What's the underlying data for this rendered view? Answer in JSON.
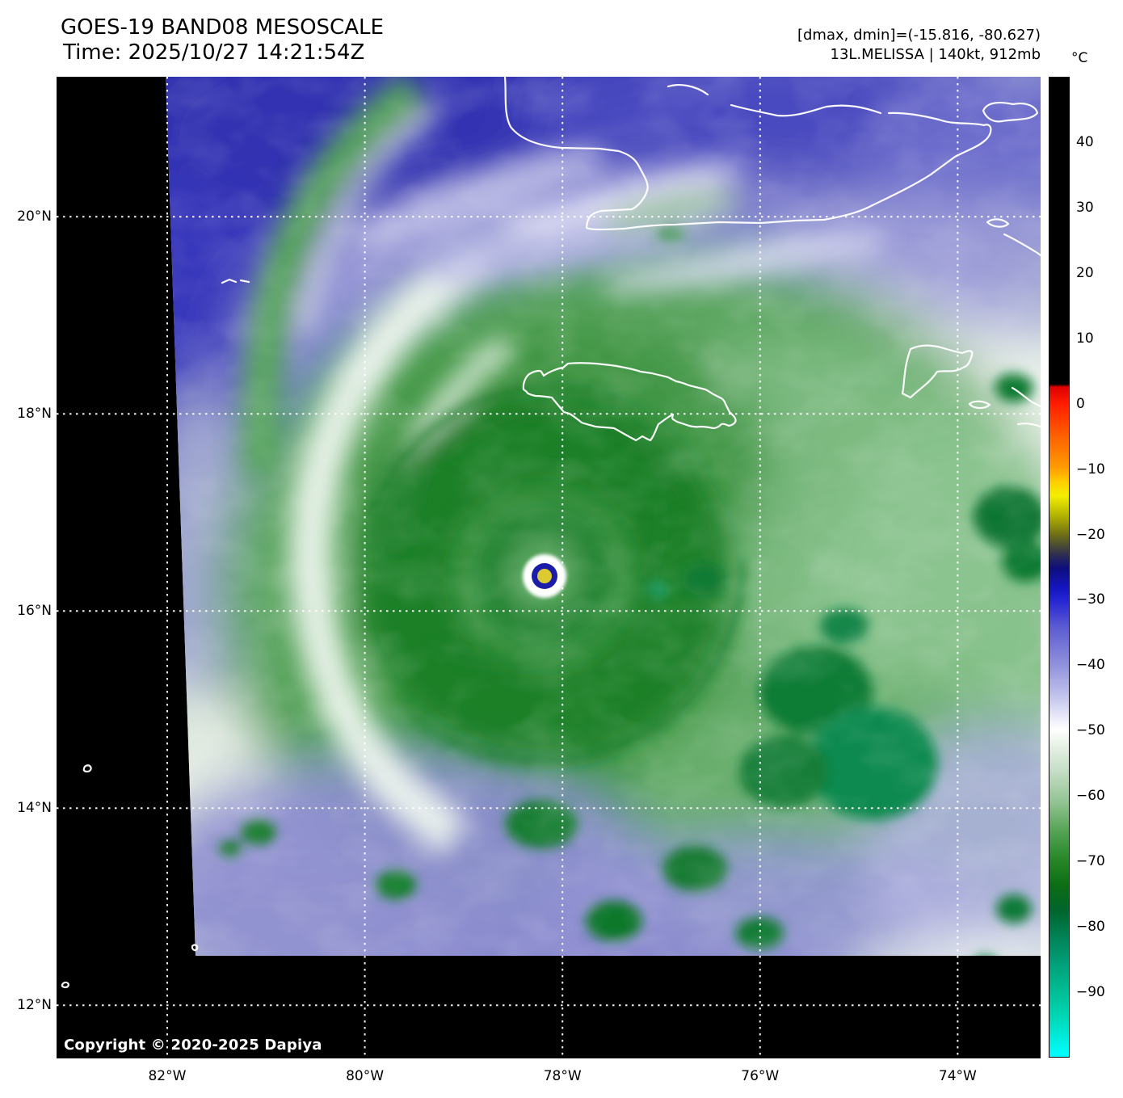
{
  "header": {
    "title_line1": "GOES-19 BAND08 MESOSCALE",
    "title_line2": "Time: 2025/10/27 14:21:54Z",
    "info_line1": "[dmax, dmin]=(-15.816, -80.627)",
    "info_line2": "13L.MELISSA | 140kt, 912mb"
  },
  "colorbar": {
    "unit": "°C",
    "vmax": 50,
    "vmin": -100,
    "ticks": [
      {
        "v": 40,
        "label": "40"
      },
      {
        "v": 30,
        "label": "30"
      },
      {
        "v": 20,
        "label": "20"
      },
      {
        "v": 10,
        "label": "10"
      },
      {
        "v": 0,
        "label": "0"
      },
      {
        "v": -10,
        "label": "−10"
      },
      {
        "v": -20,
        "label": "−20"
      },
      {
        "v": -30,
        "label": "−30"
      },
      {
        "v": -40,
        "label": "−40"
      },
      {
        "v": -50,
        "label": "−50"
      },
      {
        "v": -60,
        "label": "−60"
      },
      {
        "v": -70,
        "label": "−70"
      },
      {
        "v": -80,
        "label": "−80"
      },
      {
        "v": -90,
        "label": "−90"
      }
    ],
    "stops": [
      {
        "o": 0,
        "c": "#000000"
      },
      {
        "o": 31.3,
        "c": "#000000"
      },
      {
        "o": 31.6,
        "c": "#dd0000"
      },
      {
        "o": 33.4,
        "c": "#ff1e00"
      },
      {
        "o": 36.6,
        "c": "#ff6000"
      },
      {
        "o": 39.9,
        "c": "#ff9d00"
      },
      {
        "o": 41.3,
        "c": "#ffcf00"
      },
      {
        "o": 42.7,
        "c": "#f2ee00"
      },
      {
        "o": 44.7,
        "c": "#b4b400"
      },
      {
        "o": 46.7,
        "c": "#6e6e16"
      },
      {
        "o": 48.7,
        "c": "#2e2e50"
      },
      {
        "o": 50.1,
        "c": "#0e0e7e"
      },
      {
        "o": 52.0,
        "c": "#1414bc"
      },
      {
        "o": 53.4,
        "c": "#2525d2"
      },
      {
        "o": 56.1,
        "c": "#5b5bd2"
      },
      {
        "o": 60.0,
        "c": "#9191dd"
      },
      {
        "o": 63.3,
        "c": "#c5c5ee"
      },
      {
        "o": 65.9,
        "c": "#f4f4fc"
      },
      {
        "o": 66.6,
        "c": "#fefefe"
      },
      {
        "o": 68.1,
        "c": "#e9f2e9"
      },
      {
        "o": 71.1,
        "c": "#c1dbc1"
      },
      {
        "o": 74.1,
        "c": "#90c290"
      },
      {
        "o": 77.1,
        "c": "#52a252"
      },
      {
        "o": 79.9,
        "c": "#278727"
      },
      {
        "o": 82.5,
        "c": "#0c6d14"
      },
      {
        "o": 85.0,
        "c": "#00652c"
      },
      {
        "o": 87.8,
        "c": "#008256"
      },
      {
        "o": 90.5,
        "c": "#00a078"
      },
      {
        "o": 93.2,
        "c": "#00bc92"
      },
      {
        "o": 96.1,
        "c": "#00d9b8"
      },
      {
        "o": 100,
        "c": "#00ffff"
      }
    ]
  },
  "axes": {
    "lat_ticks": [
      {
        "deg": 20,
        "label": "20°N"
      },
      {
        "deg": 18,
        "label": "18°N"
      },
      {
        "deg": 16,
        "label": "16°N"
      },
      {
        "deg": 14,
        "label": "14°N"
      },
      {
        "deg": 12,
        "label": "12°N"
      }
    ],
    "lon_ticks": [
      {
        "deg": 82,
        "label": "82°W"
      },
      {
        "deg": 80,
        "label": "80°W"
      },
      {
        "deg": 78,
        "label": "78°W"
      },
      {
        "deg": 76,
        "label": "76°W"
      },
      {
        "deg": 74,
        "label": "74°W"
      }
    ]
  },
  "map": {
    "copyright": "Copyright © 2020-2025 Dapiya"
  }
}
